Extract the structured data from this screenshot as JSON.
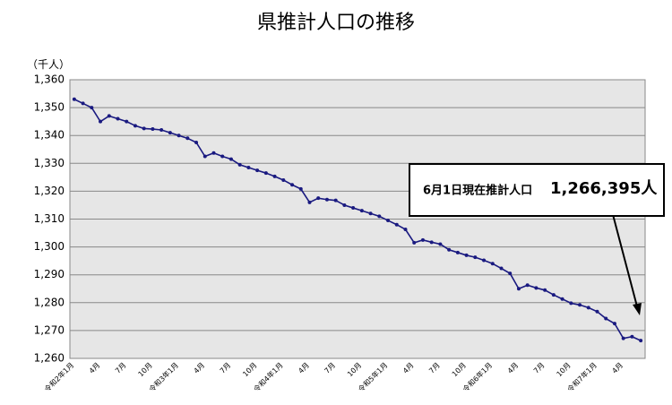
{
  "chart_data": {
    "type": "line",
    "title": "県推計人口の推移",
    "y_unit": "（千人）",
    "categories": [
      "令和2年1月",
      null,
      null,
      "4月",
      null,
      null,
      "7月",
      null,
      null,
      "10月",
      null,
      null,
      "令和3年1月",
      null,
      null,
      "4月",
      null,
      null,
      "7月",
      null,
      null,
      "10月",
      null,
      null,
      "令和4年1月",
      null,
      null,
      "4月",
      null,
      null,
      "7月",
      null,
      null,
      "10月",
      null,
      null,
      "令和5年1月",
      null,
      null,
      "4月",
      null,
      null,
      "7月",
      null,
      null,
      "10月",
      null,
      null,
      "令和6年1月",
      null,
      null,
      "4月",
      null,
      null,
      "7月",
      null,
      null,
      "10月",
      null,
      null,
      "令和7年1月",
      null,
      null,
      "4月",
      null,
      null
    ],
    "series": [
      {
        "color": "#1a1a80",
        "values": [
          1353,
          1351.5,
          1350,
          1345,
          1347,
          1346,
          1345,
          1343.5,
          1342.5,
          1342.3,
          1342,
          1341,
          1340,
          1339,
          1337.5,
          1332.5,
          1333.7,
          1332.5,
          1331.5,
          1329.5,
          1328.5,
          1327.5,
          1326.5,
          1325.3,
          1324,
          1322.3,
          1320.8,
          1316,
          1317.5,
          1317,
          1316.7,
          1315,
          1314,
          1313,
          1312,
          1311,
          1309.5,
          1308,
          1306.3,
          1301.5,
          1302.5,
          1301.7,
          1301,
          1299,
          1298,
          1297,
          1296.3,
          1295.2,
          1294,
          1292.3,
          1290.5,
          1285,
          1286.3,
          1285.3,
          1284.5,
          1282.8,
          1281.3,
          1279.8,
          1279.2,
          1278.2,
          1276.8,
          1274.3,
          1272.5,
          1267.2,
          1267.8,
          1266.4
        ]
      }
    ],
    "ylim": [
      1260,
      1360
    ],
    "yticks": [
      {
        "value": 1260,
        "label": "1,260"
      },
      {
        "value": 1270,
        "label": "1,270"
      },
      {
        "value": 1280,
        "label": "1,280"
      },
      {
        "value": 1290,
        "label": "1,290"
      },
      {
        "value": 1300,
        "label": "1,300"
      },
      {
        "value": 1310,
        "label": "1,310"
      },
      {
        "value": 1320,
        "label": "1,320"
      },
      {
        "value": 1330,
        "label": "1,330"
      },
      {
        "value": 1340,
        "label": "1,340"
      },
      {
        "value": 1350,
        "label": "1,350"
      },
      {
        "value": 1360,
        "label": "1,360"
      }
    ],
    "grid": true,
    "plot_background": "#e6e6e6",
    "annotation": {
      "text": "6月1日現在推計人口",
      "value": "1,266,395人"
    }
  }
}
